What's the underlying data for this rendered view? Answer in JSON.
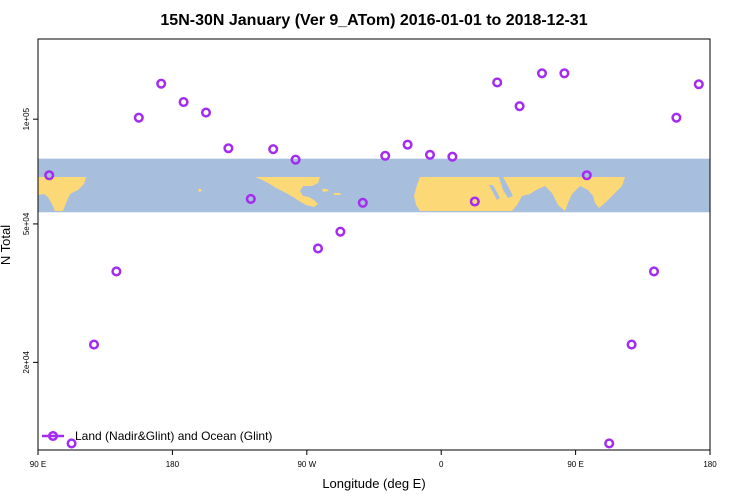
{
  "chart_data": {
    "type": "scatter",
    "title": "15N-30N January (Ver 9_ATom)   2016-01-01 to 2018-12-31",
    "xlabel": "Longitude (deg E)",
    "ylabel": "N Total",
    "x_ticks": [
      {
        "value": 90,
        "label": "90 E"
      },
      {
        "value": 180,
        "label": "180"
      },
      {
        "value": 270,
        "label": "90 W"
      },
      {
        "value": 360,
        "label": "0"
      },
      {
        "value": 450,
        "label": "90 E"
      },
      {
        "value": 540,
        "label": "180"
      }
    ],
    "y_ticks": [
      {
        "value": 20000,
        "label": "2e+04"
      },
      {
        "value": 50000,
        "label": "5e+04"
      },
      {
        "value": 100000,
        "label": "1e+05"
      }
    ],
    "y_scale": "log",
    "xlim": [
      90,
      540
    ],
    "ylim": [
      11200,
      170000
    ],
    "map_band": {
      "ylim": [
        54000,
        77000
      ],
      "ocean_color": "#a7bedc",
      "land_color": "#fdd877"
    },
    "legend": {
      "position": "bottom-left",
      "entries": [
        {
          "label": "Land (Nadir&Glint) and Ocean (Glint)",
          "color": "#a32cf0",
          "marker": "open-circle"
        }
      ]
    },
    "series": [
      {
        "name": "Land (Nadir&Glint) and Ocean (Glint)",
        "color": "#a32cf0",
        "x": [
          97.5,
          112.5,
          127.5,
          142.5,
          157.5,
          172.5,
          187.5,
          202.5,
          217.5,
          232.5,
          247.5,
          262.5,
          277.5,
          292.5,
          307.5,
          322.5,
          337.5,
          352.5,
          367.5,
          382.5,
          397.5,
          412.5,
          427.5,
          442.5,
          457.5,
          472.5,
          487.5,
          502.5,
          517.5,
          532.5
        ],
        "y": [
          69000,
          11700,
          22500,
          36500,
          101000,
          126500,
          112000,
          104500,
          82500,
          59000,
          82000,
          76500,
          42500,
          47500,
          57500,
          78500,
          84500,
          79000,
          78000,
          58000,
          127500,
          109000,
          135500,
          135500,
          69000,
          11700,
          22500,
          36500,
          101000,
          126000
        ]
      }
    ]
  }
}
